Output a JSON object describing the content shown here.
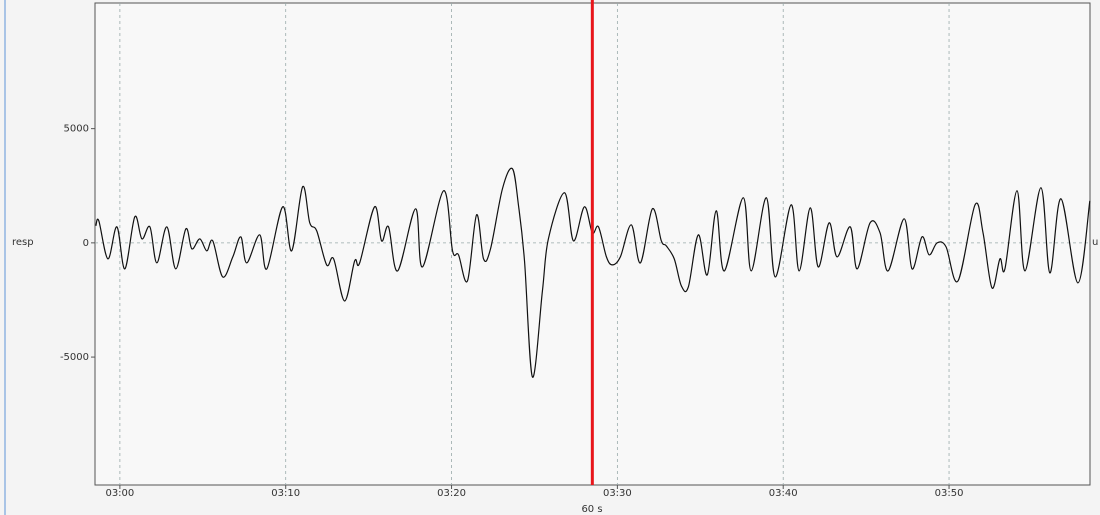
{
  "chart_data": {
    "type": "line",
    "channel_label": "resp",
    "unit_label": "u",
    "window_label": "60 s",
    "xlim": [
      178.5,
      238.5
    ],
    "xticks": [
      {
        "value": 180,
        "label": "03:00"
      },
      {
        "value": 190,
        "label": "03:10"
      },
      {
        "value": 200,
        "label": "03:20"
      },
      {
        "value": 210,
        "label": "03:30"
      },
      {
        "value": 220,
        "label": "03:40"
      },
      {
        "value": 230,
        "label": "03:50"
      }
    ],
    "ylim": [
      -10600,
      10500
    ],
    "yticks": [
      -5000,
      0,
      5000
    ],
    "grid": true,
    "cursor": 208.49,
    "cursor_color": "#e8161b",
    "x": [
      178.55,
      178.73,
      179.28,
      179.82,
      180.3,
      180.9,
      181.33,
      181.81,
      182.23,
      182.83,
      183.37,
      183.98,
      184.34,
      184.82,
      185.24,
      185.6,
      186.2,
      186.81,
      187.29,
      187.65,
      188.43,
      188.86,
      189.82,
      190.36,
      191.02,
      191.45,
      191.87,
      192.47,
      192.89,
      193.55,
      194.16,
      194.46,
      195.36,
      195.78,
      196.2,
      196.75,
      197.83,
      198.25,
      199.52,
      200.06,
      200.42,
      200.96,
      201.51,
      201.93,
      202.35,
      203.07,
      203.67,
      204.04,
      204.4,
      204.88,
      205.48,
      205.84,
      206.81,
      207.35,
      208.01,
      208.49,
      208.86,
      209.34,
      209.7,
      210.18,
      210.84,
      211.39,
      212.11,
      212.65,
      212.95,
      213.43,
      213.86,
      214.28,
      214.88,
      215.42,
      215.96,
      216.45,
      217.59,
      218.07,
      218.98,
      219.52,
      220.48,
      220.96,
      221.63,
      222.11,
      222.77,
      223.25,
      224.04,
      224.46,
      225.24,
      225.84,
      226.33,
      227.29,
      227.77,
      228.37,
      228.8,
      229.28,
      229.82,
      230.54,
      231.57,
      232.05,
      232.59,
      233.07,
      233.37,
      234.1,
      234.58,
      235.54,
      236.08,
      236.75,
      237.77,
      238.49
    ],
    "series": [
      {
        "name": "resp",
        "color": "#111111",
        "values": [
          746,
          965,
          -702,
          702,
          -1140,
          1140,
          175,
          702,
          -877,
          702,
          -1140,
          614,
          -263,
          175,
          -351,
          88,
          -1491,
          -614,
          263,
          -877,
          351,
          -1140,
          1579,
          -351,
          2456,
          877,
          526,
          -965,
          -702,
          -2544,
          -789,
          -877,
          1579,
          88,
          702,
          -1228,
          1491,
          -1053,
          2281,
          -351,
          -526,
          -1667,
          1228,
          -702,
          -263,
          2368,
          3246,
          1623,
          -789,
          -5877,
          -2105,
          175,
          2193,
          88,
          1579,
          439,
          702,
          -614,
          -965,
          -614,
          789,
          -877,
          1491,
          88,
          -132,
          -702,
          -1886,
          -1930,
          351,
          -1404,
          1404,
          -1228,
          1974,
          -1228,
          1974,
          -1491,
          1667,
          -1228,
          1535,
          -1053,
          877,
          -614,
          702,
          -1140,
          877,
          439,
          -1228,
          1053,
          -1140,
          263,
          -526,
          0,
          -175,
          -1667,
          1667,
          439,
          -1974,
          -702,
          -1140,
          2281,
          -1228,
          2412,
          -1316,
          1930,
          -1754,
          1842
        ]
      }
    ]
  }
}
